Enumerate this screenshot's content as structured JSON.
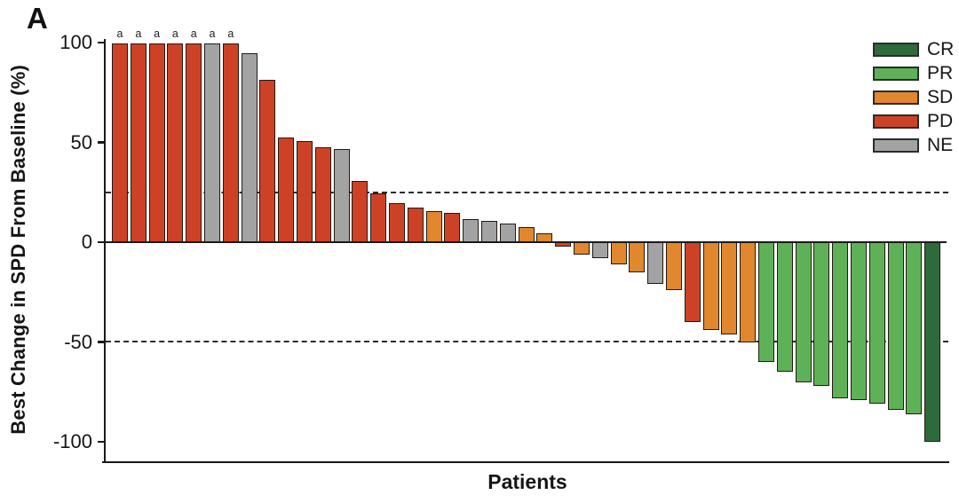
{
  "panel_label": "A",
  "axes": {
    "y_label": "Best Change in SPD From Baseline (%)",
    "x_label": "Patients",
    "y_ticks": [
      "100",
      "50",
      "0",
      "-50",
      "-100"
    ],
    "y_tick_values": [
      100,
      50,
      0,
      -50,
      -100
    ],
    "y_range": [
      -100,
      100
    ],
    "reference_line_values": [
      25,
      -50
    ]
  },
  "legend": {
    "position": "top-right",
    "items": [
      {
        "label": "CR",
        "color": "#2e6b3a"
      },
      {
        "label": "PR",
        "color": "#5fb158"
      },
      {
        "label": "SD",
        "color": "#e1872d"
      },
      {
        "label": "PD",
        "color": "#cd4227"
      },
      {
        "label": "NE",
        "color": "#a3a3a3"
      }
    ]
  },
  "chart_data": {
    "type": "bar",
    "subtype": "waterfall",
    "title": "",
    "xlabel": "Patients",
    "ylabel": "Best Change in SPD From Baseline (%)",
    "ylim": [
      -100,
      100
    ],
    "grid": false,
    "dashed_reference_lines": [
      25,
      -50
    ],
    "annotation_glyph": "a",
    "series": [
      {
        "name": "Best change in SPD from baseline (%)",
        "points": [
          {
            "value": 100,
            "response": "PD",
            "annotation": "a"
          },
          {
            "value": 100,
            "response": "PD",
            "annotation": "a"
          },
          {
            "value": 100,
            "response": "PD",
            "annotation": "a"
          },
          {
            "value": 100,
            "response": "PD",
            "annotation": "a"
          },
          {
            "value": 100,
            "response": "PD",
            "annotation": "a"
          },
          {
            "value": 100,
            "response": "NE",
            "annotation": "a"
          },
          {
            "value": 100,
            "response": "PD",
            "annotation": "a"
          },
          {
            "value": 95,
            "response": "NE"
          },
          {
            "value": 82,
            "response": "PD"
          },
          {
            "value": 53,
            "response": "PD"
          },
          {
            "value": 51,
            "response": "PD"
          },
          {
            "value": 48,
            "response": "PD"
          },
          {
            "value": 47,
            "response": "NE"
          },
          {
            "value": 31,
            "response": "PD"
          },
          {
            "value": 25,
            "response": "PD"
          },
          {
            "value": 20,
            "response": "PD"
          },
          {
            "value": 18,
            "response": "PD"
          },
          {
            "value": 16,
            "response": "SD"
          },
          {
            "value": 15,
            "response": "PD"
          },
          {
            "value": 12,
            "response": "NE"
          },
          {
            "value": 11,
            "response": "NE"
          },
          {
            "value": 10,
            "response": "NE"
          },
          {
            "value": 8,
            "response": "SD"
          },
          {
            "value": 5,
            "response": "SD"
          },
          {
            "value": -2,
            "response": "PD"
          },
          {
            "value": -6,
            "response": "SD"
          },
          {
            "value": -8,
            "response": "NE"
          },
          {
            "value": -11,
            "response": "SD"
          },
          {
            "value": -15,
            "response": "SD"
          },
          {
            "value": -21,
            "response": "NE"
          },
          {
            "value": -24,
            "response": "SD"
          },
          {
            "value": -40,
            "response": "PD"
          },
          {
            "value": -44,
            "response": "SD"
          },
          {
            "value": -46,
            "response": "SD"
          },
          {
            "value": -50,
            "response": "SD"
          },
          {
            "value": -60,
            "response": "PR"
          },
          {
            "value": -65,
            "response": "PR"
          },
          {
            "value": -70,
            "response": "PR"
          },
          {
            "value": -72,
            "response": "PR"
          },
          {
            "value": -78,
            "response": "PR"
          },
          {
            "value": -79,
            "response": "PR"
          },
          {
            "value": -81,
            "response": "PR"
          },
          {
            "value": -84,
            "response": "PR"
          },
          {
            "value": -86,
            "response": "PR"
          },
          {
            "value": -100,
            "response": "CR"
          }
        ]
      }
    ]
  }
}
